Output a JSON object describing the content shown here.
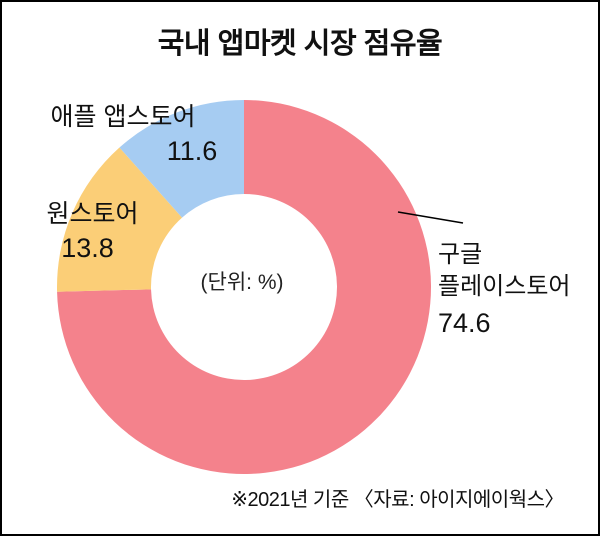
{
  "title": "국내 앱마켓 시장 점유율",
  "center_unit_label": "(단위: %)",
  "footnote": "※2021년 기준  〈자료: 아이지에이웍스〉",
  "labels": {
    "google_lines": [
      "구글",
      "플레이스토어"
    ]
  },
  "chart_data": {
    "type": "pie",
    "subtype": "donut",
    "title": "국내 앱마켓 시장 점유율",
    "unit": "%",
    "start_angle_deg": -90,
    "direction": "clockwise",
    "slices": [
      {
        "label": "구글 플레이스토어",
        "value": 74.6,
        "color": "#F4828C"
      },
      {
        "label": "원스토어",
        "value": 13.8,
        "color": "#FBCE77"
      },
      {
        "label": "애플 앱스토어",
        "value": 11.6,
        "color": "#A6CCF2"
      }
    ],
    "footnote": "※2021년 기준 〈자료: 아이지에이웍스〉",
    "legend_position": "outside-callouts"
  }
}
